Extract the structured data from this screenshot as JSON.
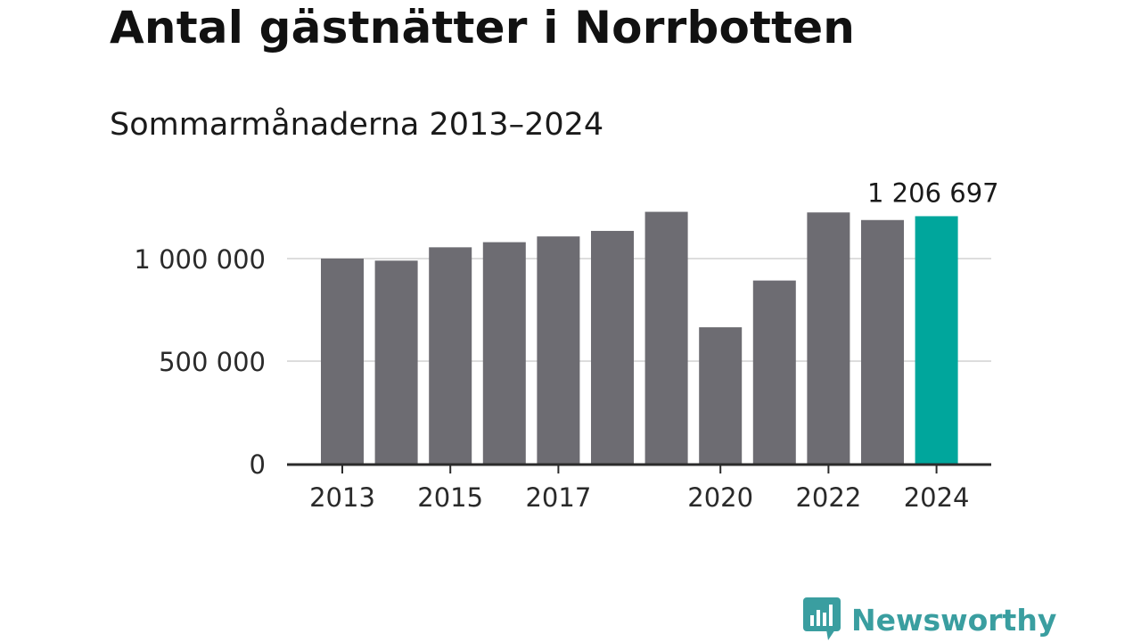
{
  "title": "Antal gästnätter i Norrbotten",
  "subtitle": "Sommarmånaderna 2013–2024",
  "chart_data": {
    "type": "bar",
    "title": "Antal gästnätter i Norrbotten",
    "subtitle": "Sommarmånaderna 2013–2024",
    "xlabel": "",
    "ylabel": "",
    "categories": [
      "2013",
      "2014",
      "2015",
      "2016",
      "2017",
      "2018",
      "2019",
      "2020",
      "2021",
      "2022",
      "2023",
      "2024"
    ],
    "values": [
      1000000,
      990000,
      1055000,
      1080000,
      1108000,
      1135000,
      1228000,
      665000,
      893000,
      1225000,
      1188000,
      1206697
    ],
    "x_tick_labels": [
      "2013",
      "2015",
      "2017",
      "2020",
      "2022",
      "2024"
    ],
    "y_ticks": [
      0,
      500000,
      1000000
    ],
    "y_tick_labels": [
      "0",
      "500 000",
      "1 000 000"
    ],
    "ylim": [
      0,
      1250000
    ],
    "grid": true,
    "highlight_index": 11,
    "highlight_label": "1 206 697",
    "colors": {
      "bar": "#6d6c72",
      "highlight": "#00a69c",
      "grid": "#dddddd",
      "axis": "#2b2b2b"
    }
  },
  "logo": {
    "text": "Newsworthy",
    "icon": "bar-chart-speech-bubble-icon",
    "color": "#3a9ea0"
  }
}
